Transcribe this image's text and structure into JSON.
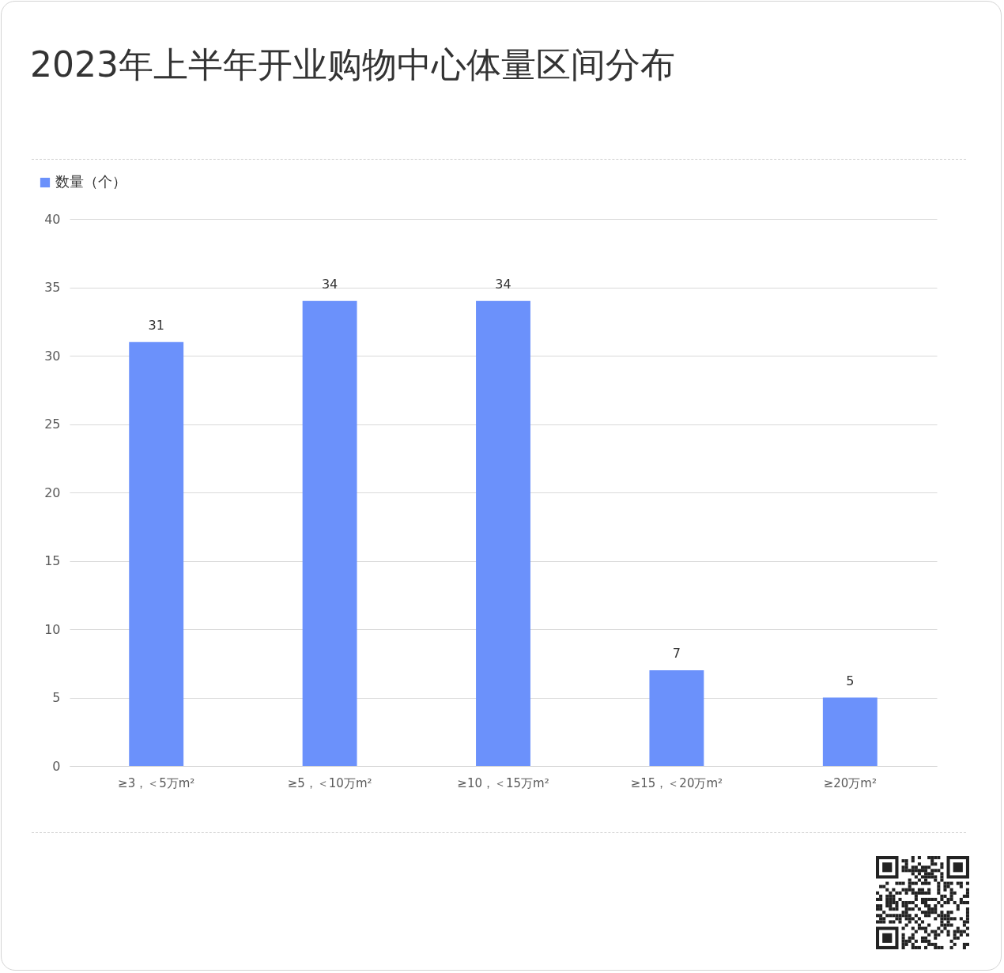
{
  "chart_data": {
    "type": "bar",
    "title": "2023年上半年开业购物中心体量区间分布",
    "categories": [
      "≥3，＜5万m²",
      "≥5，＜10万m²",
      "≥10，＜15万m²",
      "≥15，＜20万m²",
      "≥20万m²"
    ],
    "series": [
      {
        "name": "数量（个）",
        "color": "#6b91fb",
        "values": [
          31,
          34,
          34,
          7,
          5
        ]
      }
    ],
    "ylim": [
      0,
      40
    ],
    "yticks": [
      0,
      5,
      10,
      15,
      20,
      25,
      30,
      35,
      40
    ],
    "grid": "y",
    "data_labels": true,
    "legend": "top left"
  }
}
